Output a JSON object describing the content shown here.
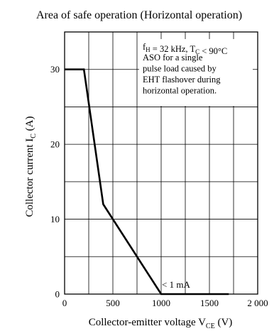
{
  "chart_data": {
    "type": "line",
    "title": "Area of safe operation (Horizontal operation)",
    "xlabel": {
      "main": "Collector-emitter voltage  V",
      "sub": "CE",
      "unit": "  (V)"
    },
    "ylabel": {
      "main": "Collector current  I",
      "sub": "C",
      "unit": "  (A)"
    },
    "xlim": [
      0,
      2000
    ],
    "ylim": [
      0,
      35
    ],
    "x_ticks": [
      0,
      500,
      1000,
      1500,
      2000
    ],
    "x_tick_labels": [
      "0",
      "500",
      "1000",
      "1500",
      "2 000"
    ],
    "y_ticks": [
      0,
      10,
      20,
      30
    ],
    "y_tick_labels": [
      "0",
      "10",
      "20",
      "30"
    ],
    "x_grid": [
      0,
      250,
      500,
      750,
      1000,
      1250,
      1500,
      1750,
      2000
    ],
    "y_grid": [
      0,
      5,
      10,
      15,
      20,
      25,
      30,
      35
    ],
    "grid": true,
    "series": [
      {
        "x": [
          0,
          200,
          400,
          1000,
          1700
        ],
        "y": [
          30,
          30,
          12,
          0,
          0
        ]
      }
    ],
    "annotations": {
      "conditions": {
        "line1": [
          {
            "t": "f",
            "s": "n"
          },
          {
            "t": "H",
            "s": "sub"
          },
          {
            "t": " = 32 kHz, T",
            "s": "n"
          },
          {
            "t": "C",
            "s": "sub"
          },
          {
            "t": " < 90°C",
            "s": "n"
          }
        ],
        "lines": [
          "ASO for a single",
          "pulse load caused by",
          "EHT flashover during",
          "horizontal operation."
        ]
      },
      "leakage": "< 1 mA"
    }
  }
}
